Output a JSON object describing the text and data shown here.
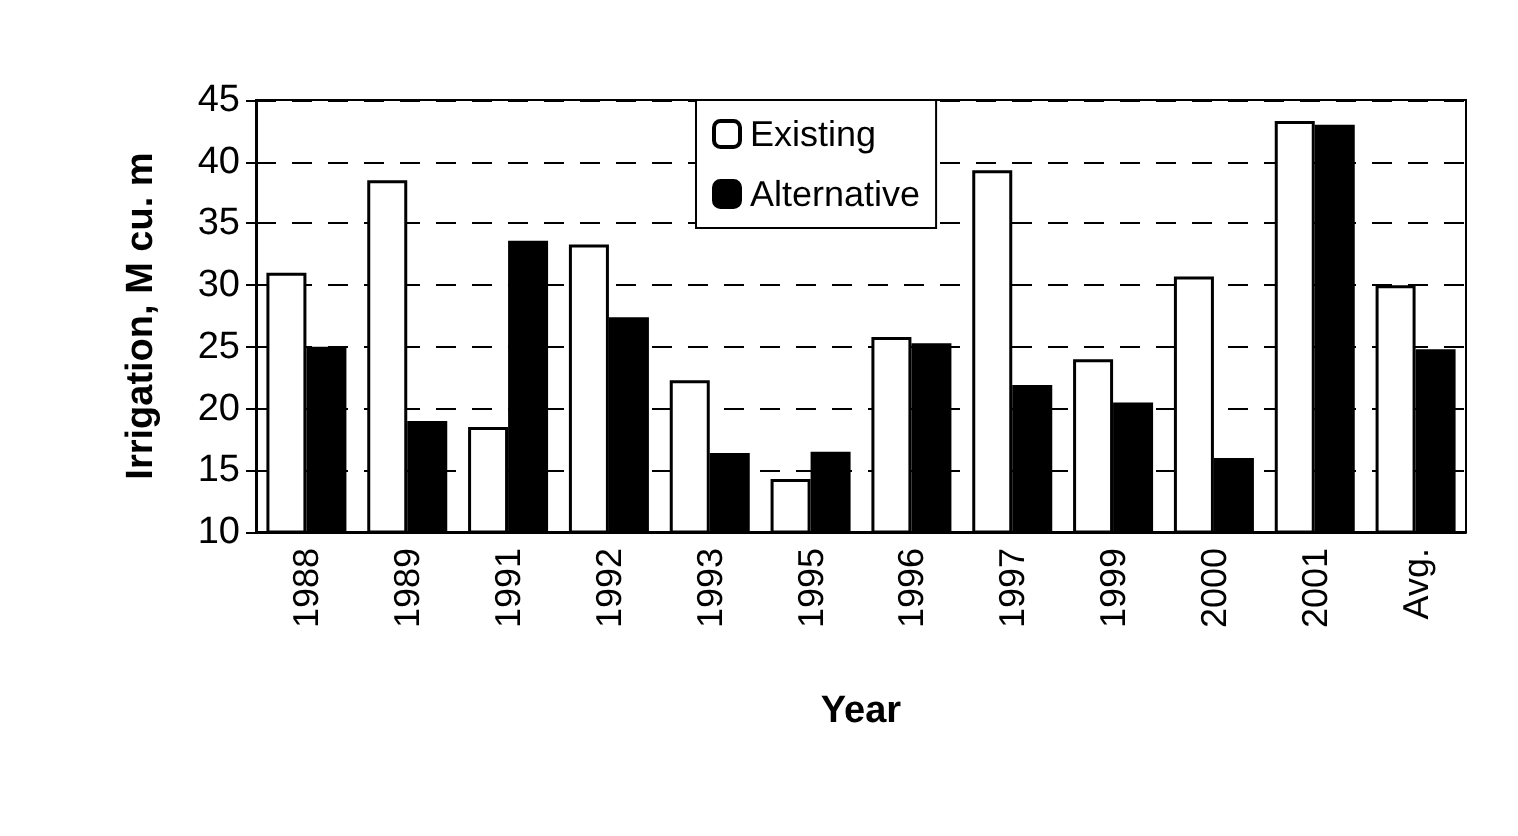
{
  "chart_data": {
    "type": "bar",
    "xlabel": "Year",
    "ylabel": "Irrigation, M cu. m",
    "categories": [
      "1988",
      "1989",
      "1991",
      "1992",
      "1993",
      "1995",
      "1996",
      "1997",
      "1999",
      "2000",
      "2001",
      "Avg."
    ],
    "series": [
      {
        "name": "Existing",
        "color": "#ffffff",
        "values": [
          31,
          38.5,
          18.5,
          33.3,
          22.3,
          14.3,
          25.8,
          39.3,
          24,
          30.7,
          43.3,
          30
        ]
      },
      {
        "name": "Alternative",
        "color": "#000000",
        "values": [
          25,
          19,
          33.6,
          27.4,
          16.4,
          16.5,
          25.3,
          21.9,
          20.5,
          16,
          43,
          24.8
        ]
      }
    ],
    "ylim": [
      10,
      45
    ],
    "yticks": [
      10,
      15,
      20,
      25,
      30,
      35,
      40,
      45
    ],
    "grid": "y",
    "legend": "top"
  }
}
